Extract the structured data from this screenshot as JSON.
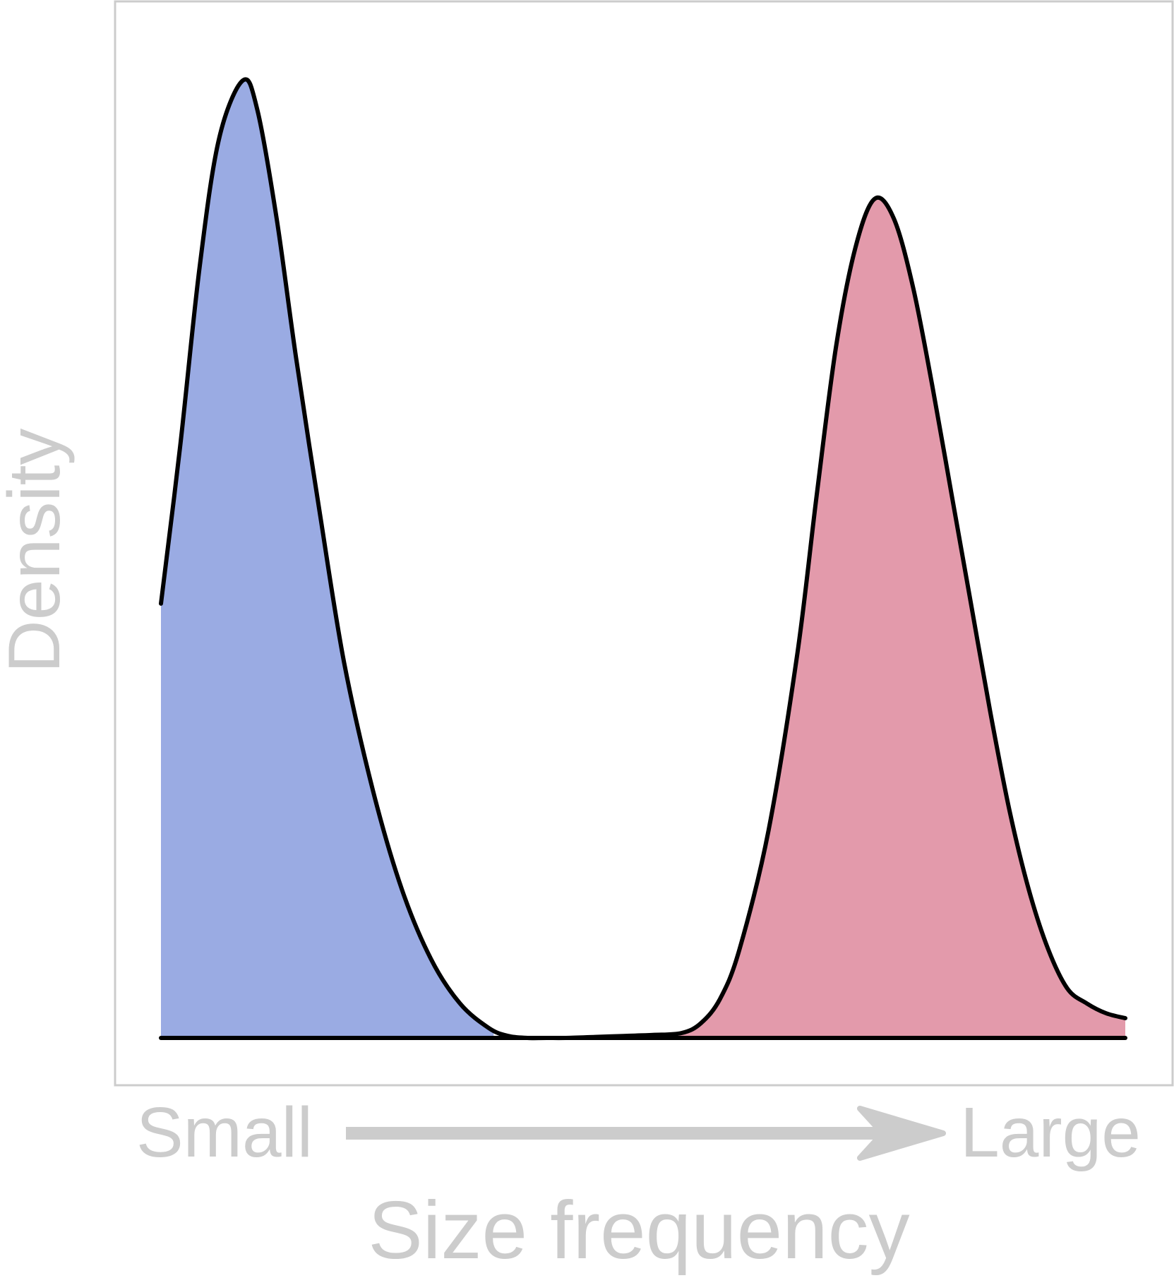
{
  "chart_data": {
    "type": "area",
    "xlabel": "Size frequency",
    "ylabel": "Density",
    "x_axis_low_label": "Small",
    "x_axis_high_label": "Large",
    "xlim": [
      0,
      1
    ],
    "ylim": [
      0,
      1
    ],
    "grid": false,
    "legend": "none",
    "curve": {
      "x": [
        0.0,
        0.02,
        0.04,
        0.06,
        0.085,
        0.1,
        0.12,
        0.14,
        0.165,
        0.19,
        0.22,
        0.25,
        0.28,
        0.31,
        0.34,
        0.36,
        0.38,
        0.4,
        0.42,
        0.45,
        0.48,
        0.51,
        0.54,
        0.56,
        0.58,
        0.6,
        0.63,
        0.66,
        0.68,
        0.7,
        0.72,
        0.74,
        0.76,
        0.78,
        0.8,
        0.82,
        0.84,
        0.86,
        0.88,
        0.9,
        0.92,
        0.94,
        0.96,
        0.98,
        1.0
      ],
      "y": [
        0.44,
        0.6,
        0.78,
        0.91,
        0.97,
        0.94,
        0.83,
        0.69,
        0.53,
        0.38,
        0.25,
        0.15,
        0.08,
        0.035,
        0.01,
        0.002,
        0.0,
        0.0,
        0.0,
        0.001,
        0.002,
        0.003,
        0.005,
        0.015,
        0.04,
        0.09,
        0.21,
        0.39,
        0.55,
        0.7,
        0.8,
        0.85,
        0.83,
        0.76,
        0.66,
        0.55,
        0.44,
        0.33,
        0.23,
        0.15,
        0.09,
        0.05,
        0.035,
        0.025,
        0.02
      ]
    },
    "regions": [
      {
        "x_start": 0.0,
        "x_end": 0.345,
        "color": "#9aabe3"
      },
      {
        "x_start": 0.53,
        "x_end": 1.0,
        "color": "#e39aab"
      }
    ],
    "colors": {
      "frame": "#cccccc",
      "curve": "#000000",
      "baseline": "#000000",
      "label": "#cccccc",
      "arrow": "#cccccc"
    }
  }
}
